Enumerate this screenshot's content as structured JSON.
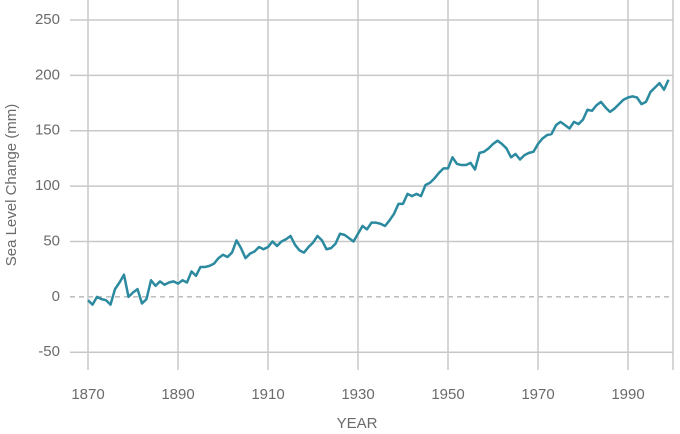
{
  "chart_data": {
    "type": "line",
    "x_label": "YEAR",
    "y_label": "Sea Level Change (mm)",
    "x": [
      1870,
      1871,
      1872,
      1873,
      1874,
      1875,
      1876,
      1877,
      1878,
      1879,
      1880,
      1881,
      1882,
      1883,
      1884,
      1885,
      1886,
      1887,
      1888,
      1889,
      1890,
      1891,
      1892,
      1893,
      1894,
      1895,
      1896,
      1897,
      1898,
      1899,
      1900,
      1901,
      1902,
      1903,
      1904,
      1905,
      1906,
      1907,
      1908,
      1909,
      1910,
      1911,
      1912,
      1913,
      1914,
      1915,
      1916,
      1917,
      1918,
      1919,
      1920,
      1921,
      1922,
      1923,
      1924,
      1925,
      1926,
      1927,
      1928,
      1929,
      1930,
      1931,
      1932,
      1933,
      1934,
      1935,
      1936,
      1937,
      1938,
      1939,
      1940,
      1941,
      1942,
      1943,
      1944,
      1945,
      1946,
      1947,
      1948,
      1949,
      1950,
      1951,
      1952,
      1953,
      1954,
      1955,
      1956,
      1957,
      1958,
      1959,
      1960,
      1961,
      1962,
      1963,
      1964,
      1965,
      1966,
      1967,
      1968,
      1969,
      1970,
      1971,
      1972,
      1973,
      1974,
      1975,
      1976,
      1977,
      1978,
      1979,
      1980,
      1981,
      1982,
      1983,
      1984,
      1985,
      1986,
      1987,
      1988,
      1989,
      1990,
      1991,
      1992,
      1993,
      1994,
      1995,
      1996,
      1997,
      1998,
      1999
    ],
    "series": [
      {
        "color": "#2b8a9f",
        "values": [
          -3,
          -7,
          0,
          -2,
          -3,
          -7,
          7,
          13,
          20,
          0,
          4,
          7,
          -6,
          -2,
          15,
          10,
          14,
          11,
          13,
          14,
          12,
          15,
          13,
          23,
          19,
          27,
          27,
          28,
          30,
          35,
          38,
          36,
          40,
          51,
          44,
          35,
          39,
          41,
          45,
          43,
          45,
          50,
          46,
          50,
          52,
          55,
          47,
          42,
          40,
          45,
          49,
          55,
          51,
          43,
          44,
          48,
          57,
          56,
          53,
          50,
          57,
          64,
          61,
          67,
          67,
          66,
          64,
          69,
          75,
          84,
          84,
          93,
          91,
          93,
          91,
          101,
          103,
          107,
          112,
          116,
          116,
          126,
          120,
          119,
          119,
          121,
          115,
          130,
          131,
          134,
          138,
          141,
          138,
          134,
          126,
          129,
          124,
          128,
          130,
          131,
          138,
          143,
          146,
          147,
          155,
          158,
          155,
          152,
          158,
          156,
          160,
          169,
          168,
          173,
          176,
          171,
          167,
          170,
          174,
          178,
          180,
          181,
          180,
          174,
          176,
          185,
          189,
          193,
          187,
          196
        ]
      }
    ],
    "xlim": [
      1866,
      2000
    ],
    "xticks": [
      1870,
      1890,
      1910,
      1930,
      1950,
      1970,
      1990
    ],
    "ylim": [
      -66,
      268
    ],
    "yticks": [
      -50,
      0,
      50,
      100,
      150,
      200,
      250
    ],
    "grid": true
  }
}
